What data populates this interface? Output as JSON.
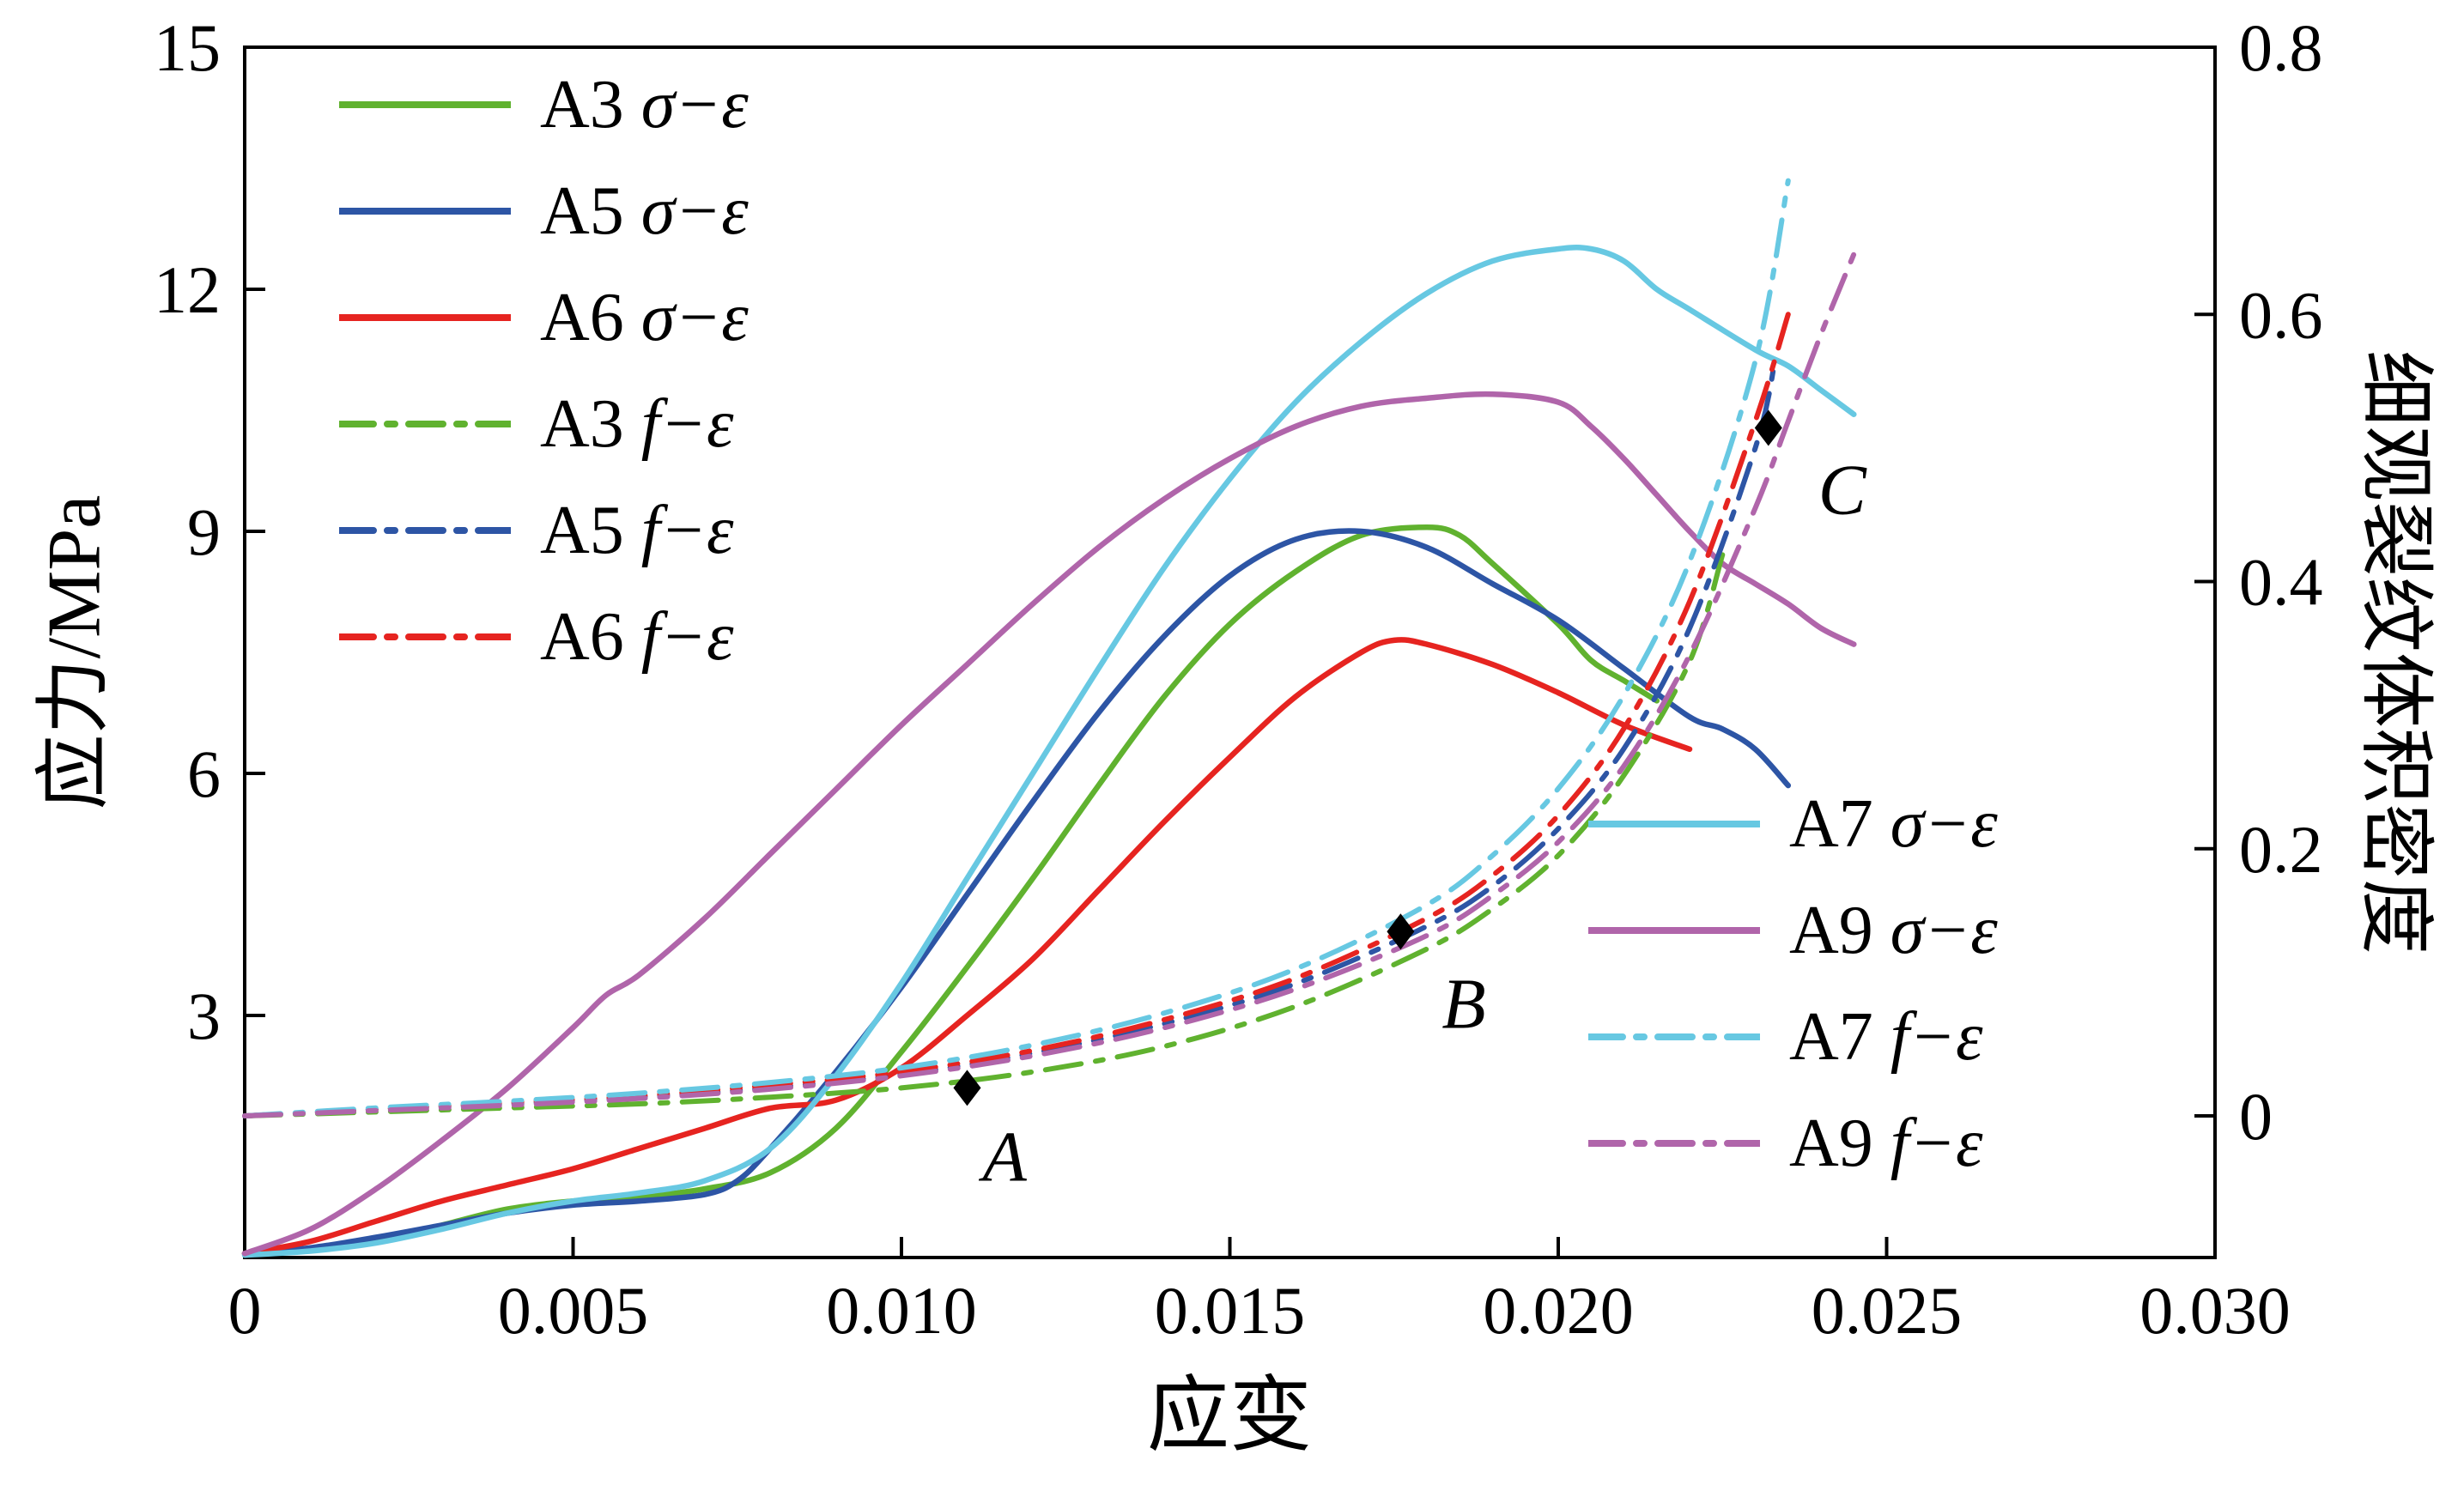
{
  "chart_data": {
    "type": "line",
    "title": "",
    "x_axis": {
      "label": "应变",
      "min": 0,
      "max": 0.03,
      "ticks": [
        0,
        0.005,
        0.01,
        0.015,
        0.02,
        0.025,
        0.03
      ],
      "tick_labels": [
        "0",
        "0.005",
        "0.010",
        "0.015",
        "0.020",
        "0.025",
        "0.030"
      ]
    },
    "y_axis_left": {
      "label": "应力/MPa",
      "min": 0,
      "max": 15,
      "ticks": [
        3,
        6,
        9,
        12,
        15
      ],
      "tick_labels": [
        "3",
        "6",
        "9",
        "12",
        "15"
      ]
    },
    "y_axis_right": {
      "label": "细观裂纹体积密度",
      "min": -0.106,
      "max": 0.8,
      "ticks": [
        0,
        0.2,
        0.4,
        0.6,
        0.8
      ],
      "tick_labels": [
        "0",
        "0.2",
        "0.4",
        "0.6",
        "0.8"
      ]
    },
    "series": [
      {
        "id": "A3-sigma",
        "prefix": "A3",
        "symbol": "σ−ε",
        "axis": "left",
        "style": "solid",
        "color": "#60b22f",
        "x": [
          0,
          0.001,
          0.002,
          0.003,
          0.004,
          0.005,
          0.006,
          0.007,
          0.008,
          0.009,
          0.01,
          0.011,
          0.012,
          0.013,
          0.014,
          0.015,
          0.016,
          0.017,
          0.018,
          0.0185,
          0.019,
          0.02,
          0.0205,
          0.021,
          0.0215
        ],
        "y": [
          0.05,
          0.1,
          0.2,
          0.4,
          0.6,
          0.7,
          0.75,
          0.85,
          1.05,
          1.6,
          2.55,
          3.6,
          4.7,
          5.85,
          6.95,
          7.85,
          8.5,
          8.95,
          9.05,
          8.95,
          8.6,
          7.85,
          7.4,
          7.15,
          6.9
        ]
      },
      {
        "id": "A5-sigma",
        "prefix": "A5",
        "symbol": "σ−ε",
        "axis": "left",
        "style": "solid",
        "color": "#2d55a5",
        "x": [
          0,
          0.001,
          0.002,
          0.003,
          0.004,
          0.005,
          0.006,
          0.007,
          0.0075,
          0.008,
          0.009,
          0.01,
          0.011,
          0.012,
          0.013,
          0.014,
          0.015,
          0.016,
          0.017,
          0.018,
          0.019,
          0.02,
          0.021,
          0.022,
          0.0225,
          0.023,
          0.0235
        ],
        "y": [
          0.05,
          0.12,
          0.25,
          0.4,
          0.55,
          0.65,
          0.7,
          0.78,
          0.95,
          1.35,
          2.3,
          3.35,
          4.5,
          5.65,
          6.75,
          7.7,
          8.45,
          8.9,
          9.0,
          8.8,
          8.35,
          7.9,
          7.3,
          6.7,
          6.55,
          6.3,
          5.85
        ]
      },
      {
        "id": "A6-sigma",
        "prefix": "A6",
        "symbol": "σ−ε",
        "axis": "left",
        "style": "solid",
        "color": "#e62420",
        "x": [
          0,
          0.001,
          0.002,
          0.003,
          0.004,
          0.005,
          0.006,
          0.007,
          0.008,
          0.009,
          0.01,
          0.011,
          0.012,
          0.013,
          0.014,
          0.015,
          0.016,
          0.017,
          0.0175,
          0.018,
          0.019,
          0.02,
          0.021,
          0.022
        ],
        "y": [
          0.05,
          0.2,
          0.45,
          0.7,
          0.9,
          1.1,
          1.35,
          1.6,
          1.85,
          1.95,
          2.35,
          3.0,
          3.7,
          4.55,
          5.4,
          6.2,
          6.95,
          7.5,
          7.65,
          7.6,
          7.35,
          7.0,
          6.6,
          6.3
        ]
      },
      {
        "id": "A7-sigma",
        "prefix": "A7",
        "symbol": "σ−ε",
        "axis": "left",
        "style": "solid",
        "color": "#67c8e2",
        "x": [
          0,
          0.001,
          0.002,
          0.003,
          0.004,
          0.005,
          0.006,
          0.007,
          0.008,
          0.009,
          0.01,
          0.011,
          0.012,
          0.013,
          0.014,
          0.015,
          0.016,
          0.017,
          0.018,
          0.019,
          0.02,
          0.0205,
          0.021,
          0.0215,
          0.022,
          0.023,
          0.0235,
          0.024,
          0.0245
        ],
        "y": [
          0.03,
          0.08,
          0.18,
          0.35,
          0.55,
          0.7,
          0.8,
          0.95,
          1.35,
          2.25,
          3.4,
          4.7,
          6.0,
          7.3,
          8.55,
          9.65,
          10.6,
          11.35,
          11.95,
          12.35,
          12.5,
          12.5,
          12.35,
          12.0,
          11.75,
          11.25,
          11.05,
          10.75,
          10.45
        ]
      },
      {
        "id": "A9-sigma",
        "prefix": "A9",
        "symbol": "σ−ε",
        "axis": "left",
        "style": "solid",
        "color": "#b065aa",
        "x": [
          0,
          0.001,
          0.002,
          0.003,
          0.004,
          0.005,
          0.0055,
          0.006,
          0.007,
          0.008,
          0.009,
          0.01,
          0.011,
          0.012,
          0.013,
          0.014,
          0.015,
          0.016,
          0.017,
          0.018,
          0.019,
          0.02,
          0.0205,
          0.021,
          0.0215,
          0.022,
          0.0225,
          0.023,
          0.0235,
          0.024,
          0.0245
        ],
        "y": [
          0.05,
          0.35,
          0.85,
          1.45,
          2.1,
          2.85,
          3.25,
          3.5,
          4.2,
          5.0,
          5.8,
          6.6,
          7.35,
          8.1,
          8.8,
          9.4,
          9.9,
          10.3,
          10.55,
          10.65,
          10.7,
          10.6,
          10.3,
          9.9,
          9.45,
          9.0,
          8.6,
          8.35,
          8.1,
          7.8,
          7.6
        ]
      },
      {
        "id": "A3-f",
        "prefix": "A3",
        "symbol": "f−ε",
        "axis": "right",
        "style": "dashdot",
        "color": "#60b22f",
        "x": [
          0,
          0.002,
          0.004,
          0.006,
          0.008,
          0.01,
          0.012,
          0.014,
          0.016,
          0.018,
          0.019,
          0.02,
          0.021,
          0.022,
          0.0225
        ],
        "y": [
          0,
          0.003,
          0.006,
          0.009,
          0.014,
          0.021,
          0.033,
          0.052,
          0.082,
          0.125,
          0.155,
          0.195,
          0.255,
          0.34,
          0.42
        ]
      },
      {
        "id": "A5-f",
        "prefix": "A5",
        "symbol": "f−ε",
        "axis": "right",
        "style": "dashdot",
        "color": "#2d55a5",
        "x": [
          0,
          0.002,
          0.004,
          0.006,
          0.008,
          0.01,
          0.012,
          0.014,
          0.016,
          0.018,
          0.019,
          0.02,
          0.021,
          0.022,
          0.023,
          0.0233
        ],
        "y": [
          0,
          0.005,
          0.009,
          0.014,
          0.021,
          0.031,
          0.047,
          0.069,
          0.099,
          0.142,
          0.172,
          0.215,
          0.275,
          0.365,
          0.5,
          0.565
        ]
      },
      {
        "id": "A6-f",
        "prefix": "A6",
        "symbol": "f−ε",
        "axis": "right",
        "style": "dashdot",
        "color": "#e62420",
        "x": [
          0,
          0.002,
          0.004,
          0.006,
          0.008,
          0.01,
          0.012,
          0.014,
          0.016,
          0.018,
          0.019,
          0.02,
          0.021,
          0.022,
          0.023,
          0.0235
        ],
        "y": [
          0,
          0.005,
          0.01,
          0.015,
          0.023,
          0.033,
          0.049,
          0.072,
          0.103,
          0.148,
          0.18,
          0.225,
          0.29,
          0.385,
          0.52,
          0.6
        ]
      },
      {
        "id": "A7-f",
        "prefix": "A7",
        "symbol": "f−ε",
        "axis": "right",
        "style": "dashdot",
        "color": "#67c8e2",
        "x": [
          0,
          0.002,
          0.004,
          0.006,
          0.008,
          0.01,
          0.012,
          0.014,
          0.016,
          0.018,
          0.019,
          0.02,
          0.021,
          0.022,
          0.023,
          0.0235
        ],
        "y": [
          0,
          0.006,
          0.011,
          0.017,
          0.025,
          0.036,
          0.053,
          0.077,
          0.11,
          0.158,
          0.195,
          0.245,
          0.315,
          0.415,
          0.565,
          0.7
        ]
      },
      {
        "id": "A9-f",
        "prefix": "A9",
        "symbol": "f−ε",
        "axis": "right",
        "style": "dashdot",
        "color": "#b065aa",
        "x": [
          0,
          0.002,
          0.004,
          0.006,
          0.008,
          0.01,
          0.012,
          0.014,
          0.016,
          0.018,
          0.019,
          0.02,
          0.021,
          0.022,
          0.023,
          0.0235,
          0.024,
          0.0245
        ],
        "y": [
          0,
          0.004,
          0.008,
          0.013,
          0.02,
          0.03,
          0.045,
          0.066,
          0.095,
          0.135,
          0.165,
          0.205,
          0.262,
          0.345,
          0.455,
          0.52,
          0.585,
          0.645
        ]
      }
    ],
    "markers": [
      {
        "label": "A",
        "x": 0.011,
        "value": 0.021,
        "axis": "right"
      },
      {
        "label": "B",
        "x": 0.0176,
        "value": 0.138,
        "axis": "right"
      },
      {
        "label": "C",
        "x": 0.0232,
        "value": 0.515,
        "axis": "right"
      }
    ],
    "legends": {
      "top_left": [
        {
          "prefix": "A3",
          "symbol": "σ−ε",
          "color": "#60b22f",
          "style": "solid"
        },
        {
          "prefix": "A5",
          "symbol": "σ−ε",
          "color": "#2d55a5",
          "style": "solid"
        },
        {
          "prefix": "A6",
          "symbol": "σ−ε",
          "color": "#e62420",
          "style": "solid"
        },
        {
          "prefix": "A3",
          "symbol": "f−ε",
          "color": "#60b22f",
          "style": "dashdot"
        },
        {
          "prefix": "A5",
          "symbol": "f−ε",
          "color": "#2d55a5",
          "style": "dashdot"
        },
        {
          "prefix": "A6",
          "symbol": "f−ε",
          "color": "#e62420",
          "style": "dashdot"
        }
      ],
      "right": [
        {
          "prefix": "A7",
          "symbol": "σ−ε",
          "color": "#67c8e2",
          "style": "solid"
        },
        {
          "prefix": "A9",
          "symbol": "σ−ε",
          "color": "#b065aa",
          "style": "solid"
        },
        {
          "prefix": "A7",
          "symbol": "f−ε",
          "color": "#67c8e2",
          "style": "dashdot"
        },
        {
          "prefix": "A9",
          "symbol": "f−ε",
          "color": "#b065aa",
          "style": "dashdot"
        }
      ]
    }
  }
}
